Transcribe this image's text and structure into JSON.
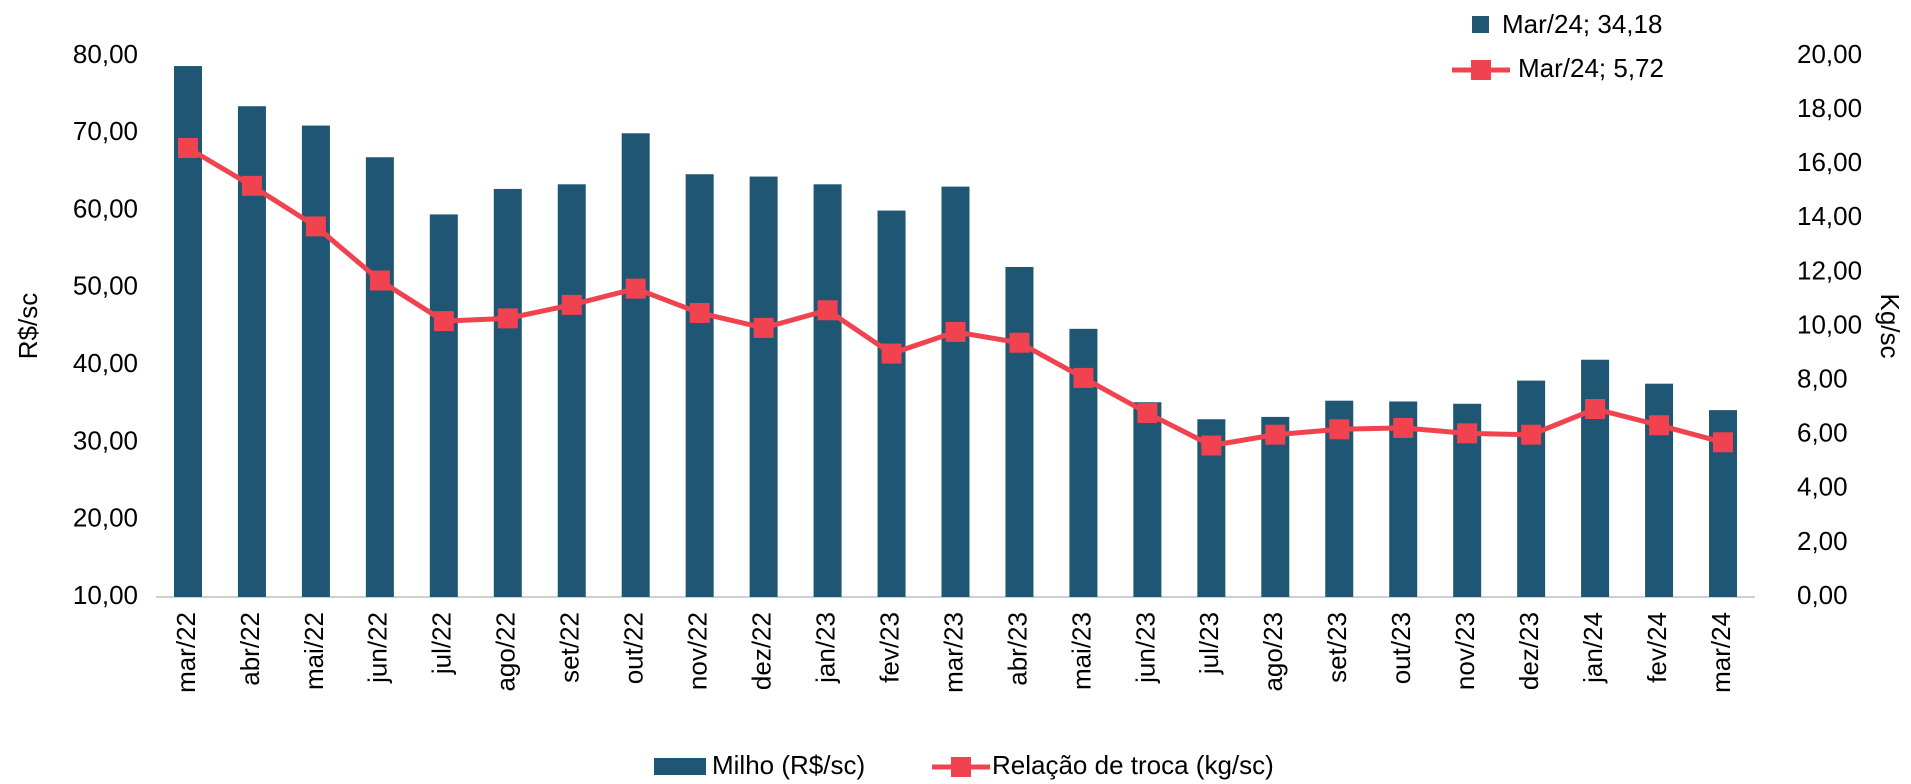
{
  "chart_data": {
    "type": "bar_line",
    "categories": [
      "mar/22",
      "abr/22",
      "mai/22",
      "jun/22",
      "jul/22",
      "ago/22",
      "set/22",
      "out/22",
      "nov/22",
      "dez/22",
      "jan/23",
      "fev/23",
      "mar/23",
      "abr/23",
      "mai/23",
      "jun/23",
      "jul/23",
      "ago/23",
      "set/23",
      "out/23",
      "nov/23",
      "dez/23",
      "jan/24",
      "fev/24",
      "mar/24"
    ],
    "series": [
      {
        "name": "Milho (R$/sc)",
        "color": "#1f5673",
        "axis": "y",
        "values": [
          78.7,
          73.5,
          71.0,
          66.9,
          59.5,
          62.8,
          63.4,
          70.0,
          64.7,
          64.4,
          63.4,
          60.0,
          63.1,
          52.7,
          44.7,
          35.2,
          33.0,
          33.3,
          35.4,
          35.3,
          35.0,
          38.0,
          40.7,
          37.6,
          34.18
        ]
      },
      {
        "name": "Relação de troca (kg/sc)",
        "color": "#f0434f",
        "axis": "y2",
        "values": [
          16.6,
          15.2,
          13.7,
          11.7,
          10.2,
          10.3,
          10.8,
          11.4,
          10.5,
          9.95,
          10.6,
          9.0,
          9.8,
          9.4,
          8.1,
          6.8,
          5.6,
          6.0,
          6.2,
          6.25,
          6.05,
          6.0,
          6.95,
          6.35,
          5.72
        ]
      }
    ],
    "annotations": [
      "Mar/24; 34,18",
      "Mar/24; 5,72"
    ],
    "ylabel": "R$/sc",
    "y2label": "Kg/sc",
    "ylim": [
      10,
      80
    ],
    "yticks": [
      {
        "value": 10,
        "label": "10,00"
      },
      {
        "value": 20,
        "label": "20,00"
      },
      {
        "value": 30,
        "label": "30,00"
      },
      {
        "value": 40,
        "label": "40,00"
      },
      {
        "value": 50,
        "label": "50,00"
      },
      {
        "value": 60,
        "label": "60,00"
      },
      {
        "value": 70,
        "label": "70,00"
      },
      {
        "value": 80,
        "label": "80,00"
      }
    ],
    "y2lim": [
      0,
      20
    ],
    "y2ticks": [
      {
        "value": 0,
        "label": "0,00"
      },
      {
        "value": 2,
        "label": "2,00"
      },
      {
        "value": 4,
        "label": "4,00"
      },
      {
        "value": 6,
        "label": "6,00"
      },
      {
        "value": 8,
        "label": "8,00"
      },
      {
        "value": 10,
        "label": "10,00"
      },
      {
        "value": 12,
        "label": "12,00"
      },
      {
        "value": 14,
        "label": "14,00"
      },
      {
        "value": 16,
        "label": "16,00"
      },
      {
        "value": 18,
        "label": "18,00"
      },
      {
        "value": 20,
        "label": "20,00"
      }
    ],
    "grid": false,
    "legend": "bottom"
  }
}
